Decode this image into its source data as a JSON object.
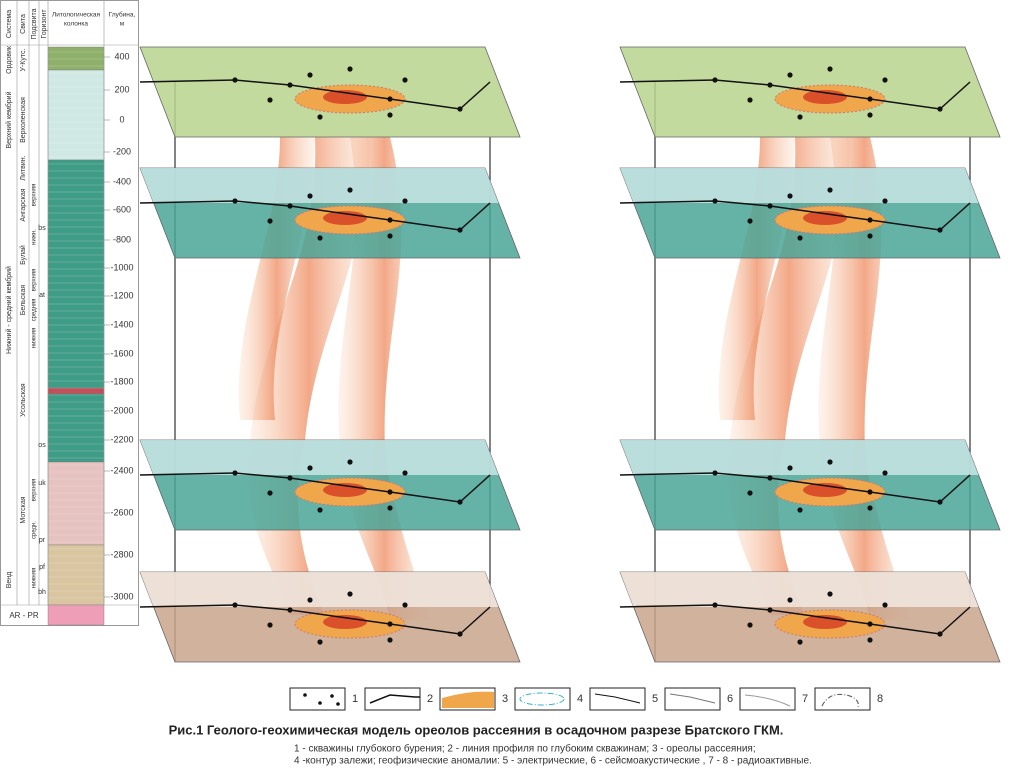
{
  "column": {
    "headers": [
      "Система",
      "Свита",
      "Подсвита",
      "Горизонт",
      "Литологическая",
      "колонка",
      "Глубина,",
      "м"
    ],
    "depth_labels": [
      "400",
      "200",
      "0",
      "-200",
      "-400",
      "-600",
      "-800",
      "-1000",
      "-1200",
      "-1400",
      "-1600",
      "-1800",
      "-2000",
      "-2200",
      "-2400",
      "-2600",
      "-2800",
      "-3000"
    ],
    "systems": [
      "Ордовик",
      "Верхний кембрий",
      "Нижний - средний кембрий",
      "Венд"
    ],
    "suites": [
      "У-Кутс.",
      "Верхоленская",
      "Литвин.",
      "Ангарская",
      "Булай",
      "Бельская",
      "Усольская",
      "Мотская"
    ],
    "subsuites": [
      "верхняя",
      "нижн.",
      "верхняя",
      "средняя",
      "нижняя",
      "верхняя",
      "средн.",
      "нижняя"
    ],
    "horizons": [
      "bs",
      "at",
      "os",
      "uk",
      "pr",
      "pf",
      "bh"
    ],
    "basement": "AR - PR"
  },
  "legend": {
    "items": [
      "1",
      "2",
      "3",
      "4",
      "5",
      "6",
      "7",
      "8"
    ]
  },
  "caption": {
    "title": "Рис.1 Геолого-геохимическая модель ореолов рассеяния в осадочном разрезе Братского ГКМ.",
    "lines": [
      "1 - скважины глубокого бурения; 2 - линия профиля по глубоким скважинам; 3 - ореолы рассеяния;",
      "4 -контур залежи;  геофизические  аномалии: 5 - электрические, 6 - сейсмоакустические , 7 - 8 - радиоактивные."
    ]
  }
}
